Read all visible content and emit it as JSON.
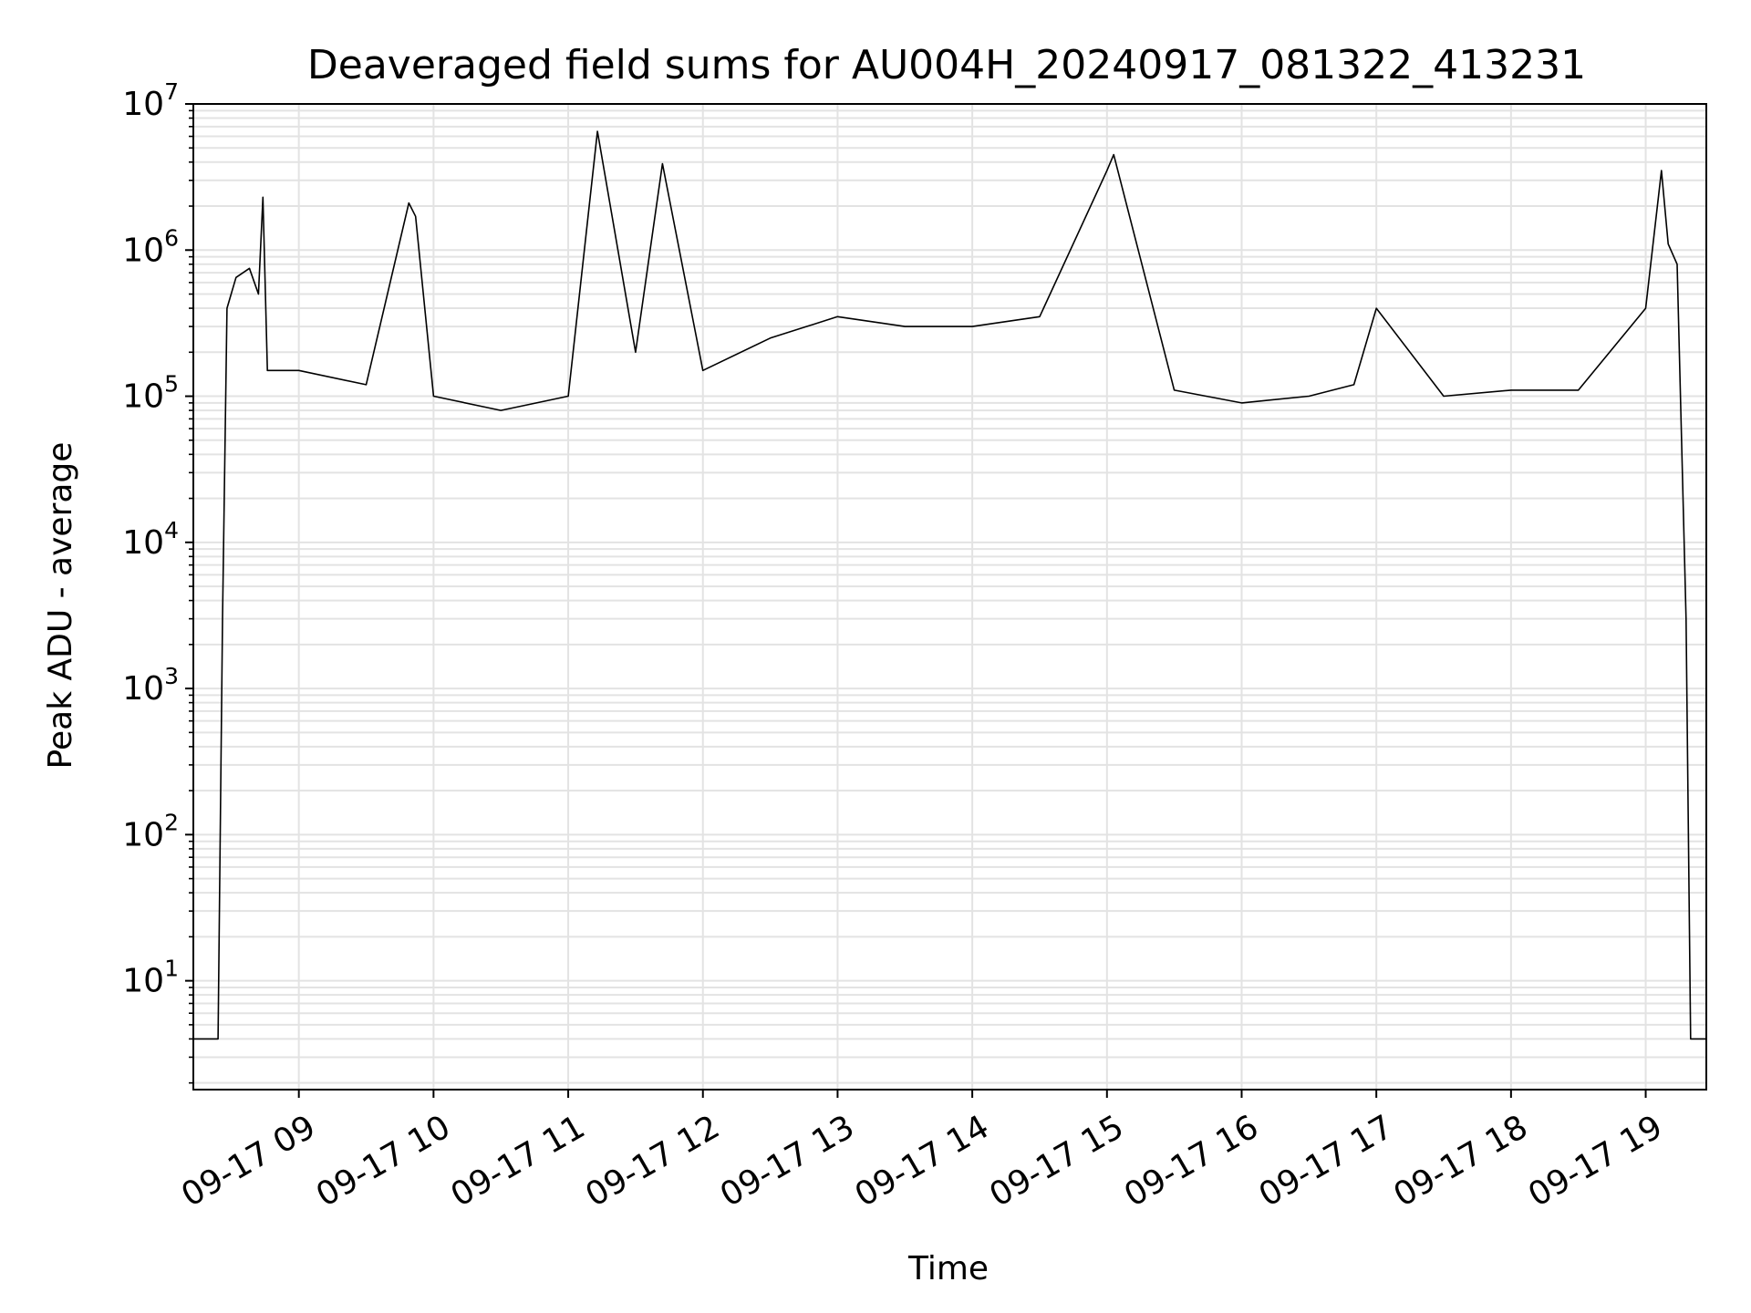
{
  "chart_data": {
    "type": "line",
    "title": "Deaveraged field sums for AU004H_20240917_081322_413231",
    "xlabel": "Time",
    "ylabel": "Peak ADU - average",
    "yscale": "log",
    "ylim": [
      1.8,
      10000000
    ],
    "xlim": [
      "2024-09-17 08:13",
      "2024-09-17 19:27"
    ],
    "grid": "major and minor, both axes",
    "legend": "none",
    "colors": {
      "line": "#000000",
      "grid": "#e3e3e3",
      "axes": "#000000"
    },
    "x_ticks": [
      {
        "value": "2024-09-17 09:00",
        "label": "09-17 09"
      },
      {
        "value": "2024-09-17 10:00",
        "label": "09-17 10"
      },
      {
        "value": "2024-09-17 11:00",
        "label": "09-17 11"
      },
      {
        "value": "2024-09-17 12:00",
        "label": "09-17 12"
      },
      {
        "value": "2024-09-17 13:00",
        "label": "09-17 13"
      },
      {
        "value": "2024-09-17 14:00",
        "label": "09-17 14"
      },
      {
        "value": "2024-09-17 15:00",
        "label": "09-17 15"
      },
      {
        "value": "2024-09-17 16:00",
        "label": "09-17 16"
      },
      {
        "value": "2024-09-17 17:00",
        "label": "09-17 17"
      },
      {
        "value": "2024-09-17 18:00",
        "label": "09-17 18"
      },
      {
        "value": "2024-09-17 19:00",
        "label": "09-17 19"
      }
    ],
    "y_ticks": [
      {
        "value": 10,
        "base": "10",
        "exp": "1"
      },
      {
        "value": 100,
        "base": "10",
        "exp": "2"
      },
      {
        "value": 1000,
        "base": "10",
        "exp": "3"
      },
      {
        "value": 10000,
        "base": "10",
        "exp": "4"
      },
      {
        "value": 100000,
        "base": "10",
        "exp": "5"
      },
      {
        "value": 1000000,
        "base": "10",
        "exp": "6"
      },
      {
        "value": 10000000,
        "base": "10",
        "exp": "7"
      }
    ],
    "series": [
      {
        "points": [
          [
            "2024-09-17 08:13",
            4
          ],
          [
            "2024-09-17 08:24",
            4
          ],
          [
            "2024-09-17 08:26",
            3000
          ],
          [
            "2024-09-17 08:28",
            400000
          ],
          [
            "2024-09-17 08:32",
            650000
          ],
          [
            "2024-09-17 08:38",
            750000
          ],
          [
            "2024-09-17 08:42",
            500000
          ],
          [
            "2024-09-17 08:44",
            2300000
          ],
          [
            "2024-09-17 08:46",
            150000
          ],
          [
            "2024-09-17 09:00",
            150000
          ],
          [
            "2024-09-17 09:30",
            120000
          ],
          [
            "2024-09-17 09:49",
            2100000
          ],
          [
            "2024-09-17 09:52",
            1700000
          ],
          [
            "2024-09-17 10:00",
            100000
          ],
          [
            "2024-09-17 10:30",
            80000
          ],
          [
            "2024-09-17 11:00",
            100000
          ],
          [
            "2024-09-17 11:13",
            6500000
          ],
          [
            "2024-09-17 11:30",
            200000
          ],
          [
            "2024-09-17 11:42",
            3900000
          ],
          [
            "2024-09-17 12:00",
            150000
          ],
          [
            "2024-09-17 12:30",
            250000
          ],
          [
            "2024-09-17 13:00",
            350000
          ],
          [
            "2024-09-17 13:30",
            300000
          ],
          [
            "2024-09-17 14:00",
            300000
          ],
          [
            "2024-09-17 14:30",
            350000
          ],
          [
            "2024-09-17 15:00",
            3500000
          ],
          [
            "2024-09-17 15:03",
            4500000
          ],
          [
            "2024-09-17 15:30",
            110000
          ],
          [
            "2024-09-17 16:00",
            90000
          ],
          [
            "2024-09-17 16:30",
            100000
          ],
          [
            "2024-09-17 16:50",
            120000
          ],
          [
            "2024-09-17 17:00",
            400000
          ],
          [
            "2024-09-17 17:30",
            100000
          ],
          [
            "2024-09-17 18:00",
            110000
          ],
          [
            "2024-09-17 18:30",
            110000
          ],
          [
            "2024-09-17 19:00",
            400000
          ],
          [
            "2024-09-17 19:07",
            3500000
          ],
          [
            "2024-09-17 19:10",
            1100000
          ],
          [
            "2024-09-17 19:14",
            800000
          ],
          [
            "2024-09-17 19:18",
            3000
          ],
          [
            "2024-09-17 19:20",
            4
          ],
          [
            "2024-09-17 19:27",
            4
          ]
        ]
      }
    ]
  }
}
